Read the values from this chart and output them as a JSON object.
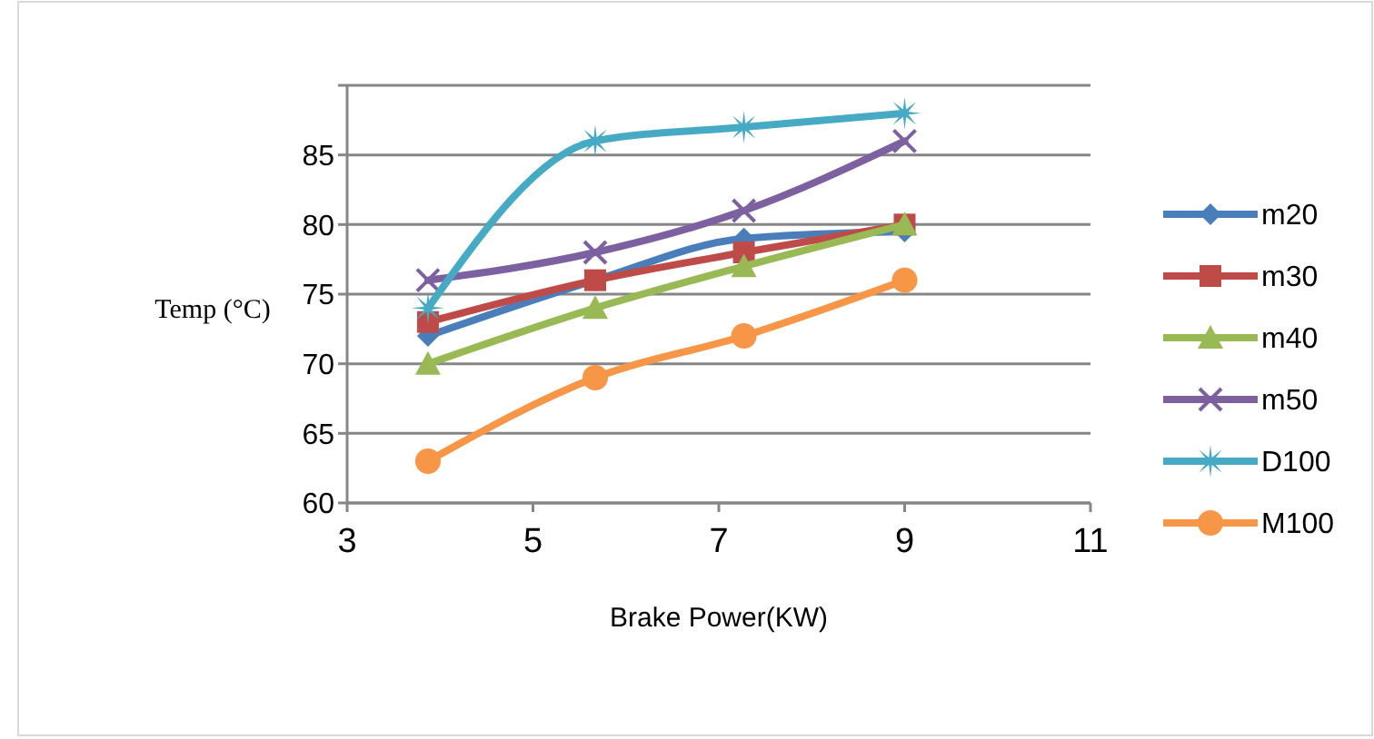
{
  "chart_data": {
    "type": "line",
    "xlabel": "Brake Power(KW)",
    "ylabel": "Temp (°C)",
    "x": [
      3.87,
      5.67,
      7.27,
      9.0
    ],
    "xlim": [
      3,
      11
    ],
    "xticks": [
      3,
      5,
      7,
      9,
      11
    ],
    "ylim": [
      60,
      90
    ],
    "yticks": [
      60,
      65,
      70,
      75,
      80,
      85,
      {
        "value": 90,
        "label": null
      }
    ],
    "grid": "y",
    "legend": "right",
    "series": [
      {
        "name": "m20",
        "color": "#4a7ebb",
        "marker": "diamond",
        "values": [
          72,
          76,
          79,
          79.5
        ]
      },
      {
        "name": "m30",
        "color": "#be4b48",
        "marker": "square",
        "values": [
          73,
          76,
          78,
          80
        ]
      },
      {
        "name": "m40",
        "color": "#98b954",
        "marker": "triangle",
        "values": [
          70,
          74,
          77,
          80
        ]
      },
      {
        "name": "m50",
        "color": "#7d60a0",
        "marker": "cross",
        "values": [
          76,
          78,
          81,
          86
        ]
      },
      {
        "name": "D100",
        "color": "#46aac5",
        "marker": "star",
        "values": [
          74,
          86,
          87,
          88
        ]
      },
      {
        "name": "M100",
        "color": "#f79646",
        "marker": "circle",
        "values": [
          63,
          69,
          72,
          76
        ]
      }
    ]
  }
}
